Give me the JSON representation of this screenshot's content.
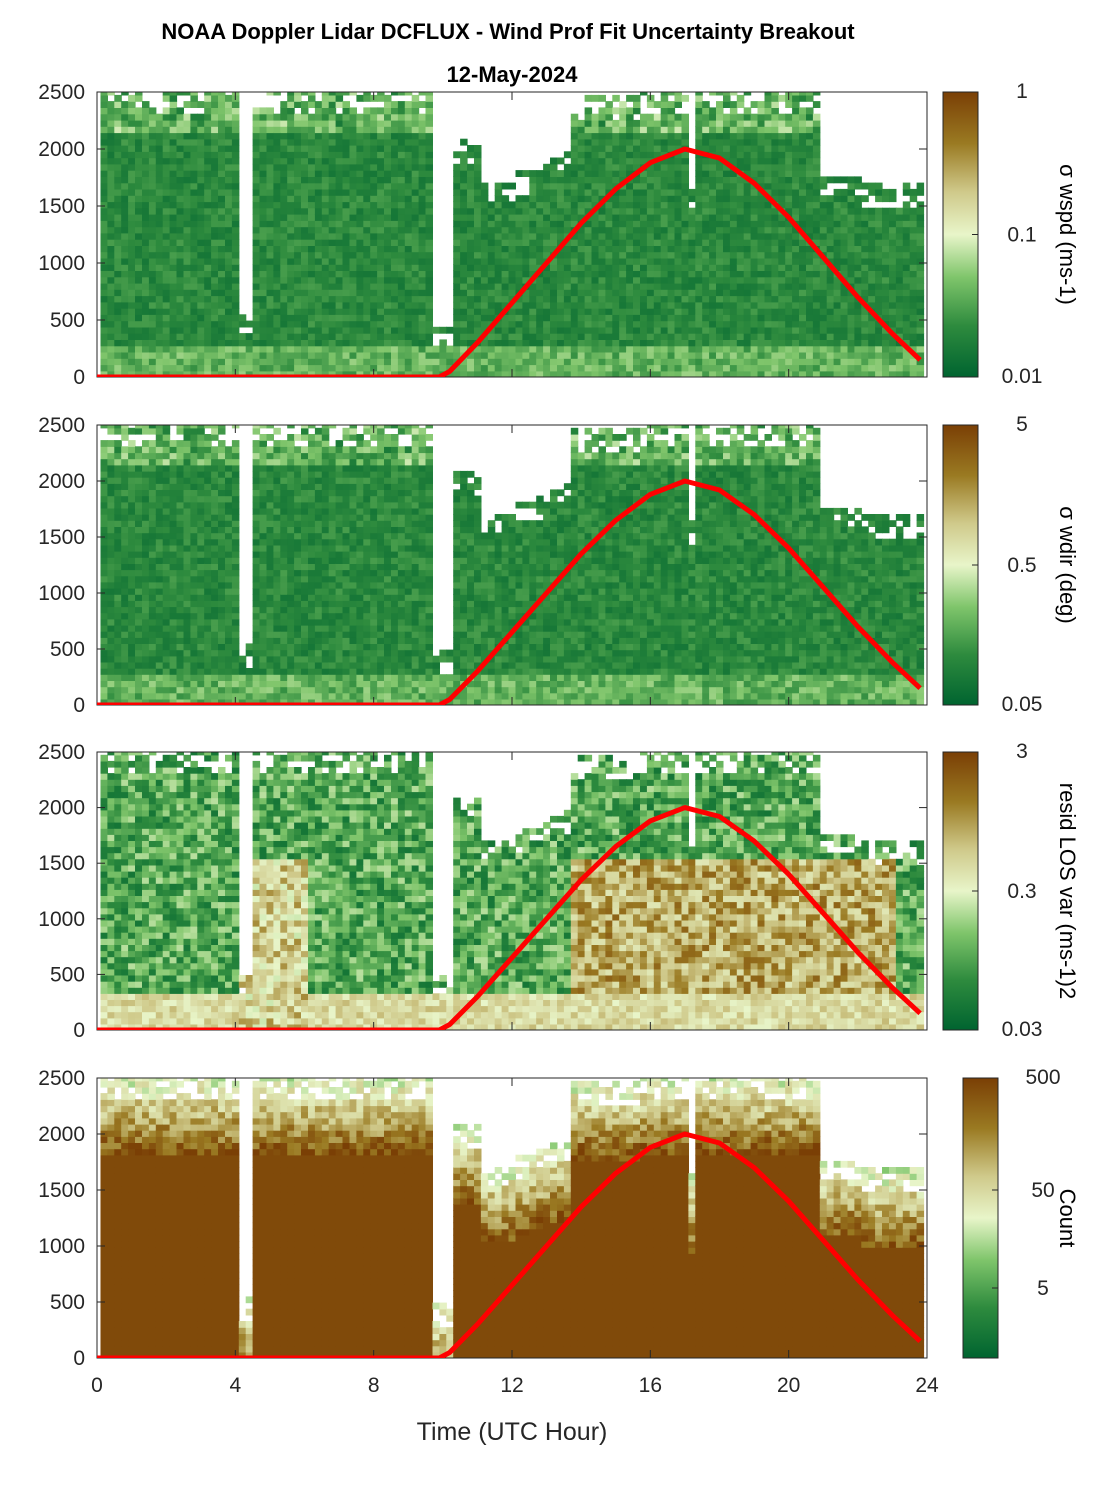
{
  "title": "NOAA Doppler Lidar DCFLUX - Wind Prof Fit Uncertainty Breakout",
  "subtitle": "12-May-2024",
  "xlabel": "Time (UTC Hour)",
  "colors": {
    "curve": "#ff0000",
    "colormap": [
      "#006430",
      "#2e8b3e",
      "#7fc56b",
      "#e8f5c9",
      "#cfc98a",
      "#9a7a22",
      "#7a3f05"
    ]
  },
  "chart_data": [
    {
      "type": "heatmap",
      "name": "sigma-wspd",
      "colorbar_label": "σ wspd (ms-1)",
      "colorbar_ticks": [
        "1",
        "0.1",
        "0.01"
      ],
      "clim": [
        0.01,
        1
      ],
      "xlim": [
        0,
        24
      ],
      "ylim": [
        0,
        2500
      ],
      "x_ticks": [
        "0",
        "4",
        "8",
        "12",
        "16",
        "20",
        "24"
      ],
      "y_ticks": [
        "0",
        "500",
        "1000",
        "1500",
        "2000",
        "2500"
      ]
    },
    {
      "type": "heatmap",
      "name": "sigma-wdir",
      "colorbar_label": "σ wdir (deg)",
      "colorbar_ticks": [
        "5",
        "0.5",
        "0.05"
      ],
      "clim": [
        0.05,
        5
      ],
      "xlim": [
        0,
        24
      ],
      "ylim": [
        0,
        2500
      ],
      "x_ticks": [
        "0",
        "4",
        "8",
        "12",
        "16",
        "20",
        "24"
      ],
      "y_ticks": [
        "0",
        "500",
        "1000",
        "1500",
        "2000",
        "2500"
      ]
    },
    {
      "type": "heatmap",
      "name": "resid-los-var",
      "colorbar_label": "resid LOS var (ms-1)2",
      "colorbar_ticks": [
        "3",
        "0.3",
        "0.03"
      ],
      "clim": [
        0.03,
        3
      ],
      "xlim": [
        0,
        24
      ],
      "ylim": [
        0,
        2500
      ],
      "x_ticks": [
        "0",
        "4",
        "8",
        "12",
        "16",
        "20",
        "24"
      ],
      "y_ticks": [
        "0",
        "500",
        "1000",
        "1500",
        "2000",
        "2500"
      ]
    },
    {
      "type": "heatmap",
      "name": "count",
      "colorbar_label": "Count",
      "colorbar_ticks": [
        "500",
        "50",
        "5"
      ],
      "clim": [
        1,
        500
      ],
      "xlim": [
        0,
        24
      ],
      "ylim": [
        0,
        2500
      ],
      "x_ticks": [
        "0",
        "4",
        "8",
        "12",
        "16",
        "20",
        "24"
      ],
      "y_ticks": [
        "0",
        "500",
        "1000",
        "1500",
        "2000",
        "2500"
      ]
    }
  ],
  "overlay_curve": {
    "type": "line",
    "x": [
      0,
      2,
      4,
      6,
      8,
      9.9,
      10.2,
      11,
      12,
      13,
      14,
      15,
      16,
      17,
      18,
      19,
      20,
      21,
      22,
      23,
      23.8
    ],
    "y": [
      0,
      0,
      0,
      0,
      0,
      0,
      50,
      300,
      650,
      1000,
      1350,
      1650,
      1880,
      2000,
      1920,
      1700,
      1400,
      1050,
      700,
      380,
      150
    ]
  }
}
